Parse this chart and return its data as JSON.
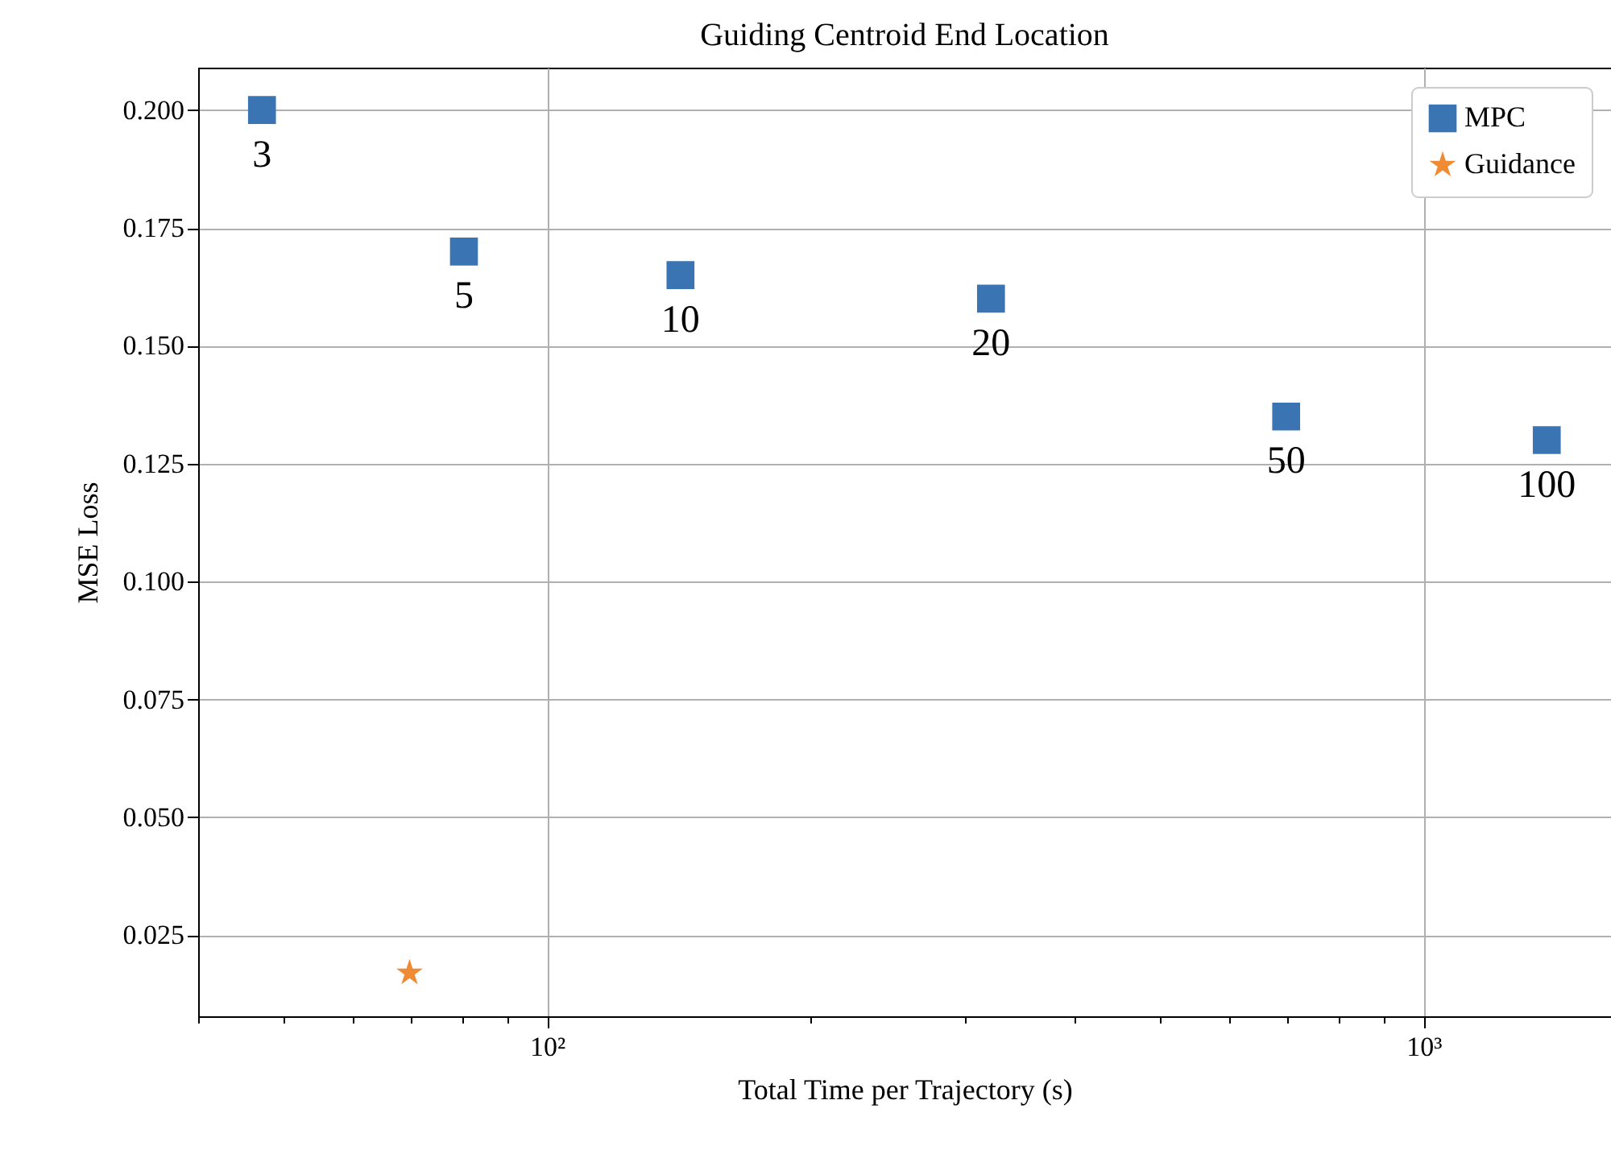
{
  "chart_data": {
    "type": "scatter",
    "title": "Guiding Centroid End Location",
    "xlabel": "Total Time per Trajectory (s)",
    "ylabel": "MSE Loss",
    "series": [
      {
        "name": "MPC",
        "color": "#3b74b2",
        "marker": "square",
        "x": [
          47.3,
          80.4,
          142,
          321,
          697,
          1382
        ],
        "values": [
          0.2,
          0.17,
          0.165,
          0.16,
          0.135,
          0.13
        ]
      },
      {
        "name": "Guidance",
        "color": "#ef8a35",
        "marker": "star",
        "x": [
          69.7
        ],
        "values": [
          0.017
        ]
      }
    ],
    "annotations": [
      {
        "text": "3",
        "x": 47.3,
        "y": 0.2
      },
      {
        "text": "5",
        "x": 80.4,
        "y": 0.17
      },
      {
        "text": "10",
        "x": 142,
        "y": 0.165
      },
      {
        "text": "20",
        "x": 321,
        "y": 0.16
      },
      {
        "text": "50",
        "x": 697,
        "y": 0.135
      },
      {
        "text": "100",
        "x": 1382,
        "y": 0.13
      }
    ],
    "log": "x",
    "xlim": [
      40,
      1636
    ],
    "ylim": [
      0.0078,
      0.209
    ],
    "xticks": [
      {
        "value": 40,
        "label": null
      },
      {
        "value": 50,
        "label": null
      },
      {
        "value": 60,
        "label": null
      },
      {
        "value": 70,
        "label": null
      },
      {
        "value": 80,
        "label": null
      },
      {
        "value": 90,
        "label": null
      },
      {
        "value": 100,
        "label": "10²"
      },
      {
        "value": 200,
        "label": null
      },
      {
        "value": 300,
        "label": null
      },
      {
        "value": 400,
        "label": null
      },
      {
        "value": 500,
        "label": null
      },
      {
        "value": 600,
        "label": null
      },
      {
        "value": 700,
        "label": null
      },
      {
        "value": 800,
        "label": null
      },
      {
        "value": 900,
        "label": null
      },
      {
        "value": 1000,
        "label": "10³"
      }
    ],
    "yticks": [
      0.025,
      {
        "value": 0.05,
        "label": "0.050"
      },
      0.075,
      {
        "value": 0.1,
        "label": "0.100"
      },
      0.125,
      {
        "value": 0.15,
        "label": "0.150"
      },
      0.175,
      {
        "value": 0.2,
        "label": "0.200"
      }
    ],
    "grid": true,
    "legend": "top right"
  }
}
